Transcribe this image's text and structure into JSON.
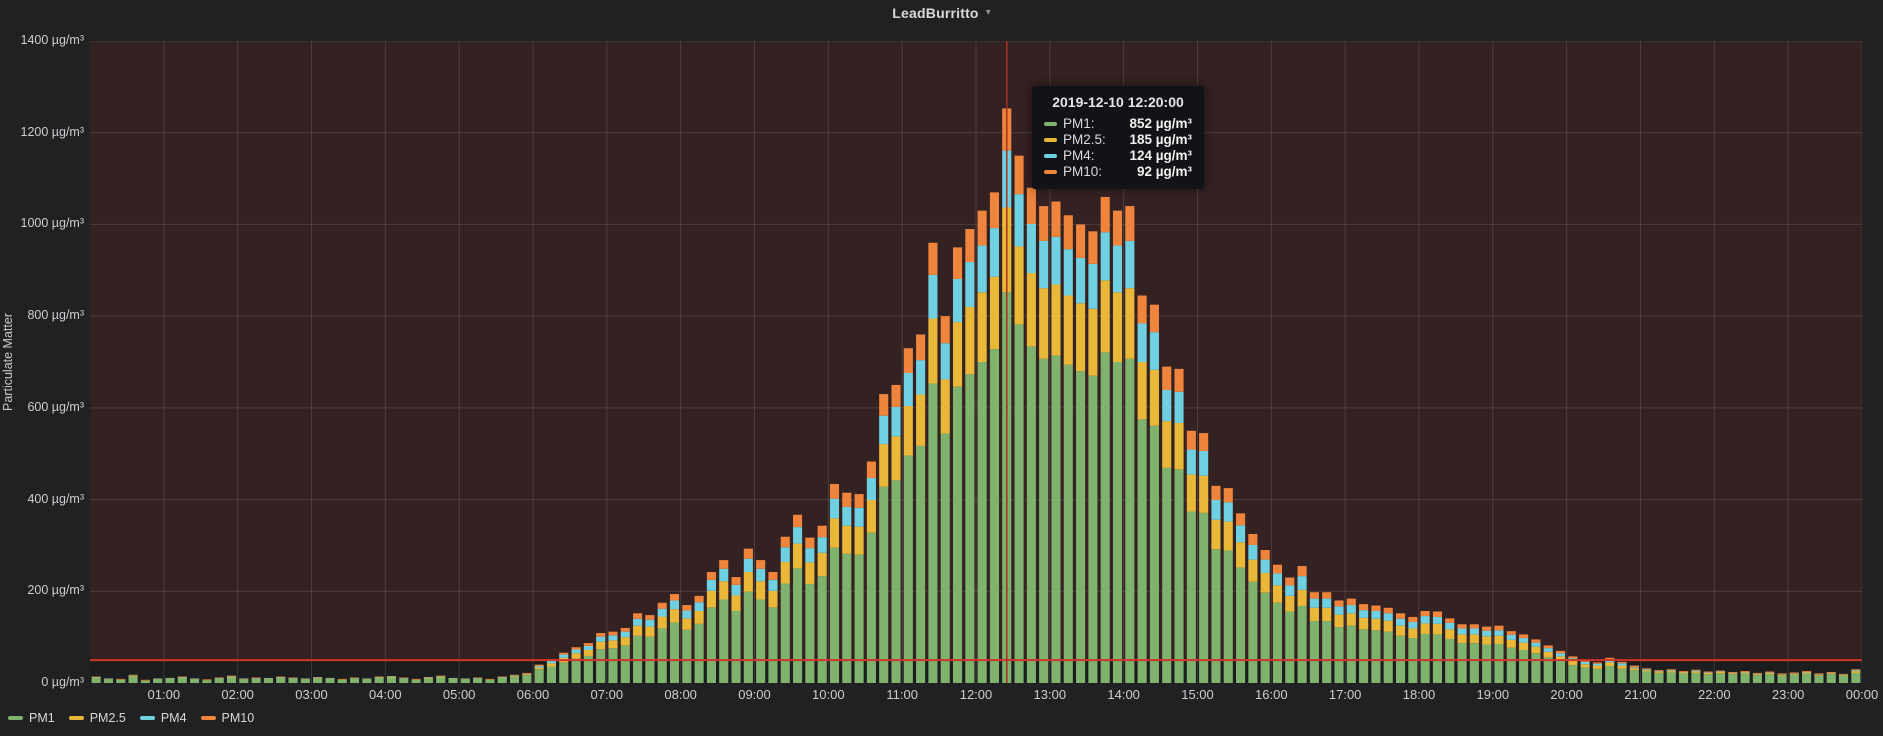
{
  "header": {
    "title": "LeadBurritto",
    "caret_icon": "▾"
  },
  "colors": {
    "page_bg": "#212124",
    "plot_bg": "#1c1d1f",
    "plot_tint": "rgba(214,62,51,0.13)",
    "grid": "rgba(255,255,255,0.13)",
    "threshold_line": "#d2332a",
    "crosshair": "#a8301f",
    "text": "#d8d9da"
  },
  "y_axis": {
    "label": "Particulate Matter",
    "unit": "µg/m³",
    "tick_labels": [
      "0 µg/m³",
      "200 µg/m³",
      "400 µg/m³",
      "600 µg/m³",
      "800 µg/m³",
      "1000 µg/m³",
      "1200 µg/m³",
      "1400 µg/m³"
    ]
  },
  "x_axis": {
    "tick_labels": [
      "01:00",
      "02:00",
      "03:00",
      "04:00",
      "05:00",
      "06:00",
      "07:00",
      "08:00",
      "09:00",
      "10:00",
      "11:00",
      "12:00",
      "13:00",
      "14:00",
      "15:00",
      "16:00",
      "17:00",
      "18:00",
      "19:00",
      "20:00",
      "21:00",
      "22:00",
      "23:00",
      "00:00"
    ]
  },
  "legend": {
    "items": [
      {
        "label": "PM1",
        "color": "#7EB26D"
      },
      {
        "label": "PM2.5",
        "color": "#EAB839"
      },
      {
        "label": "PM4",
        "color": "#6ED0E0"
      },
      {
        "label": "PM10",
        "color": "#EF843C"
      }
    ]
  },
  "tooltip": {
    "timestamp": "2019-12-10 12:20:00",
    "rows": [
      {
        "label": "PM1:",
        "value": "852 µg/m³",
        "color": "#7EB26D"
      },
      {
        "label": "PM2.5:",
        "value": "185 µg/m³",
        "color": "#EAB839"
      },
      {
        "label": "PM4:",
        "value": "124 µg/m³",
        "color": "#6ED0E0"
      },
      {
        "label": "PM10:",
        "value": "92 µg/m³",
        "color": "#EF843C"
      }
    ]
  },
  "chart_data": {
    "type": "bar",
    "stacked": true,
    "title": "LeadBurritto",
    "date": "2019-12-10",
    "x_start_time": "00:00",
    "x_interval_minutes": 10,
    "ylabel": "Particulate Matter",
    "ylim": [
      0,
      1400
    ],
    "y_step": 200,
    "grid": true,
    "legend_position": "bottom-left",
    "threshold": {
      "value": 50
    },
    "crosshair_index": 74,
    "highlight": {
      "index": 74,
      "time": "12:20",
      "total": 1253
    },
    "series": [
      {
        "name": "PM1",
        "color": "#7EB26D",
        "values": [
          11,
          8,
          7,
          14,
          5,
          8,
          9,
          11,
          8,
          6,
          9,
          12,
          8,
          9,
          9,
          11,
          9,
          8,
          10,
          9,
          7,
          9,
          8,
          11,
          12,
          9,
          7,
          10,
          12,
          9,
          8,
          9,
          7,
          11,
          14,
          17,
          30,
          36,
          45,
          53,
          59,
          74,
          76,
          82,
          103,
          101,
          119,
          132,
          116,
          129,
          165,
          182,
          157,
          199,
          182,
          165,
          217,
          250,
          216,
          233,
          295,
          282,
          280,
          328,
          428,
          442,
          496,
          517,
          653,
          544,
          646,
          673,
          700,
          728,
          852,
          782,
          734,
          707,
          714,
          694,
          680,
          670,
          721,
          700,
          707,
          575,
          561,
          469,
          466,
          374,
          371,
          292,
          289,
          252,
          221,
          197,
          175,
          156,
          168,
          135,
          135,
          122,
          125,
          117,
          115,
          112,
          103,
          98,
          107,
          106,
          96,
          87,
          87,
          84,
          85,
          77,
          72,
          65,
          56,
          48,
          39,
          34,
          31,
          37,
          31,
          28,
          25,
          22,
          23,
          20,
          22,
          19,
          21,
          19,
          20,
          17,
          19,
          16,
          18,
          20,
          16,
          19,
          16,
          22
        ]
      },
      {
        "name": "PM2.5",
        "color": "#EAB839",
        "values": [
          1,
          1,
          1,
          2,
          1,
          1,
          1,
          1,
          1,
          1,
          1,
          2,
          1,
          1,
          1,
          1,
          1,
          1,
          1,
          1,
          1,
          1,
          1,
          1,
          2,
          1,
          1,
          1,
          2,
          1,
          1,
          1,
          1,
          1,
          2,
          2,
          4,
          7,
          10,
          12,
          13,
          16,
          17,
          18,
          22,
          22,
          26,
          29,
          25,
          28,
          36,
          40,
          34,
          43,
          40,
          36,
          47,
          54,
          47,
          51,
          64,
          61,
          61,
          71,
          93,
          96,
          108,
          112,
          142,
          118,
          141,
          147,
          152,
          158,
          185,
          170,
          160,
          154,
          155,
          151,
          148,
          146,
          157,
          152,
          154,
          125,
          122,
          102,
          101,
          81,
          81,
          64,
          63,
          55,
          48,
          43,
          38,
          34,
          35,
          29,
          29,
          27,
          27,
          25,
          25,
          24,
          22,
          21,
          23,
          23,
          21,
          19,
          19,
          18,
          18,
          17,
          16,
          14,
          12,
          10,
          9,
          7,
          7,
          8,
          7,
          4,
          3,
          3,
          3,
          3,
          3,
          3,
          3,
          2,
          3,
          2,
          3,
          2,
          2,
          3,
          2,
          2,
          2,
          4
        ]
      },
      {
        "name": "PM4",
        "color": "#6ED0E0",
        "values": [
          1,
          1,
          0,
          1,
          0,
          1,
          1,
          1,
          1,
          0,
          1,
          1,
          1,
          1,
          1,
          1,
          1,
          1,
          1,
          1,
          0,
          1,
          1,
          1,
          1,
          1,
          0,
          1,
          1,
          1,
          1,
          1,
          0,
          1,
          1,
          1,
          3,
          5,
          7,
          8,
          9,
          11,
          11,
          12,
          15,
          15,
          17,
          19,
          17,
          19,
          24,
          27,
          23,
          29,
          27,
          24,
          32,
          36,
          31,
          34,
          43,
          41,
          41,
          48,
          62,
          64,
          72,
          75,
          95,
          79,
          94,
          98,
          102,
          106,
          124,
          114,
          107,
          103,
          104,
          101,
          99,
          98,
          105,
          102,
          103,
          84,
          82,
          68,
          68,
          54,
          54,
          43,
          42,
          37,
          32,
          29,
          26,
          23,
          30,
          20,
          20,
          18,
          18,
          17,
          17,
          16,
          15,
          14,
          16,
          15,
          14,
          13,
          13,
          12,
          12,
          11,
          10,
          9,
          8,
          7,
          6,
          5,
          4,
          6,
          5,
          2,
          2,
          1,
          2,
          1,
          2,
          1,
          1,
          1,
          1,
          1,
          1,
          1,
          1,
          1,
          1,
          1,
          1,
          2
        ]
      },
      {
        "name": "PM10",
        "color": "#EF843C",
        "values": [
          1,
          0,
          1,
          1,
          1,
          0,
          0,
          1,
          0,
          1,
          1,
          1,
          0,
          1,
          0,
          1,
          1,
          0,
          1,
          0,
          1,
          1,
          0,
          1,
          0,
          1,
          1,
          1,
          1,
          0,
          0,
          1,
          1,
          1,
          1,
          2,
          3,
          4,
          4,
          5,
          6,
          8,
          8,
          8,
          12,
          10,
          13,
          14,
          12,
          14,
          17,
          19,
          17,
          22,
          19,
          17,
          23,
          27,
          23,
          25,
          32,
          31,
          30,
          36,
          47,
          48,
          54,
          56,
          70,
          59,
          69,
          72,
          76,
          78,
          92,
          84,
          79,
          76,
          77,
          74,
          73,
          71,
          77,
          76,
          76,
          61,
          60,
          51,
          50,
          41,
          39,
          31,
          31,
          26,
          24,
          21,
          19,
          17,
          22,
          14,
          14,
          13,
          14,
          13,
          12,
          12,
          12,
          11,
          11,
          12,
          10,
          9,
          9,
          9,
          10,
          8,
          8,
          7,
          6,
          5,
          4,
          4,
          3,
          4,
          3,
          4,
          2,
          2,
          2,
          2,
          2,
          2,
          2,
          2,
          2,
          2,
          2,
          2,
          2,
          2,
          2,
          2,
          1,
          2
        ]
      }
    ]
  }
}
